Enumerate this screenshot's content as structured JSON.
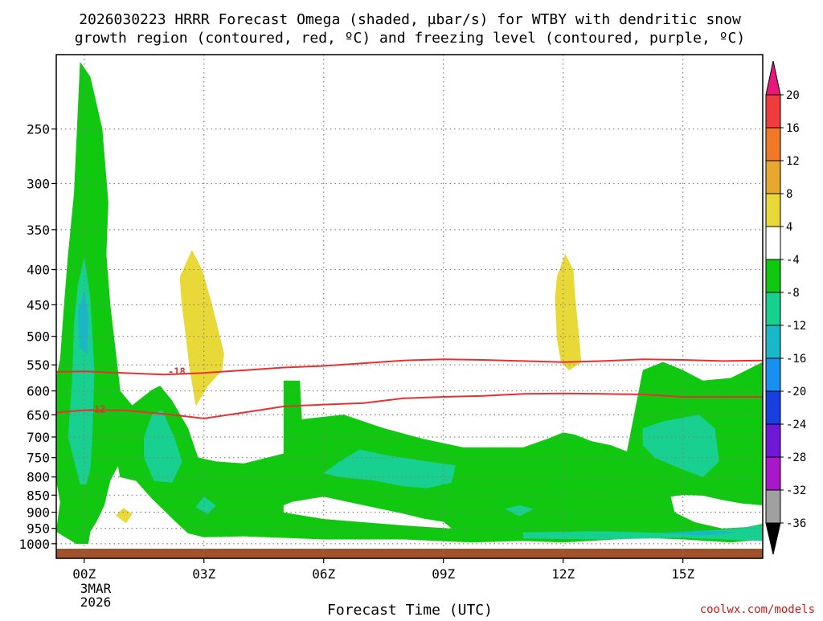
{
  "title_line1": "2026030223 HRRR Forecast Omega (shaded, µbar/s) for WTBY with dendritic snow",
  "title_line2": "growth region (contoured, red, ºC) and freezing level (contoured, purple, ºC)",
  "xlabel": "Forecast Time (UTC)",
  "credit": "coolwx.com/models",
  "date_label": [
    "3MAR",
    "2026"
  ],
  "chart_data": {
    "type": "heatmap",
    "title": "2026030223 HRRR Forecast Omega (shaded, µbar/s) for WTBY with dendritic snow growth region (contoured, red, ºC) and freezing level (contoured, purple, ºC)",
    "xlabel": "Forecast Time (UTC)",
    "ylabel": "",
    "x_unit": "forecast hour",
    "xlim": [
      -0.7,
      17.0
    ],
    "ylim_hpa": [
      1050,
      195
    ],
    "y_scale": "log-pressure",
    "grid": true,
    "x_ticks": [
      {
        "hour": 0,
        "label": "00Z"
      },
      {
        "hour": 3,
        "label": "03Z"
      },
      {
        "hour": 6,
        "label": "06Z"
      },
      {
        "hour": 9,
        "label": "09Z"
      },
      {
        "hour": 12,
        "label": "12Z"
      },
      {
        "hour": 15,
        "label": "15Z"
      }
    ],
    "y_ticks": [
      250,
      300,
      350,
      400,
      450,
      500,
      550,
      600,
      650,
      700,
      750,
      800,
      850,
      900,
      950,
      1000
    ],
    "colorbar": {
      "labels": [
        "20",
        "16",
        "12",
        "8",
        "4",
        "-4",
        "-8",
        "-12",
        "-16",
        "-20",
        "-24",
        "-28",
        "-32",
        "-36"
      ],
      "colors": [
        "#e8187a",
        "#f03c3c",
        "#f07828",
        "#e8a830",
        "#e8d838",
        "#ffffff",
        "#10c810",
        "#18d090",
        "#18b8c8",
        "#1890f0",
        "#1840e0",
        "#7018d8",
        "#a818c8",
        "#a0a0a0",
        "#000000"
      ]
    },
    "omega_regions": [
      {
        "level": "-4 to -8",
        "color": "#10c810",
        "points": [
          [
            -0.2,
            1000
          ],
          [
            -0.7,
            960
          ],
          [
            -0.6,
            870
          ],
          [
            -0.8,
            750
          ],
          [
            -0.9,
            650
          ],
          [
            -0.6,
            540
          ],
          [
            -0.5,
            450
          ],
          [
            -0.4,
            380
          ],
          [
            -0.25,
            310
          ],
          [
            -0.1,
            200
          ],
          [
            0.15,
            210
          ],
          [
            0.45,
            250
          ],
          [
            0.6,
            320
          ],
          [
            0.55,
            380
          ],
          [
            0.65,
            450
          ],
          [
            0.9,
            600
          ],
          [
            1.2,
            630
          ],
          [
            1.7,
            598
          ],
          [
            1.9,
            590
          ],
          [
            2.2,
            620
          ],
          [
            2.6,
            680
          ],
          [
            2.85,
            750
          ],
          [
            3.3,
            760
          ],
          [
            4.0,
            765
          ],
          [
            5.0,
            740
          ],
          [
            5.0,
            580
          ],
          [
            5.4,
            580
          ],
          [
            5.45,
            660
          ],
          [
            6.5,
            650
          ],
          [
            7.5,
            680
          ],
          [
            8.5,
            705
          ],
          [
            9.5,
            725
          ],
          [
            11.0,
            725
          ],
          [
            11.6,
            705
          ],
          [
            12.0,
            690
          ],
          [
            12.3,
            695
          ],
          [
            12.7,
            710
          ],
          [
            13.2,
            720
          ],
          [
            13.6,
            735
          ],
          [
            14.0,
            560
          ],
          [
            14.5,
            545
          ],
          [
            15.0,
            560
          ],
          [
            15.5,
            580
          ],
          [
            16.2,
            575
          ],
          [
            16.6,
            560
          ],
          [
            17.0,
            545
          ],
          [
            17.0,
            985
          ],
          [
            16.6,
            990
          ],
          [
            16.2,
            995
          ],
          [
            15.0,
            985
          ],
          [
            14.0,
            980
          ],
          [
            12.0,
            995
          ],
          [
            11.0,
            990
          ],
          [
            9.7,
            995
          ],
          [
            8.0,
            985
          ],
          [
            6.0,
            985
          ],
          [
            4.0,
            975
          ],
          [
            3.0,
            978
          ],
          [
            2.6,
            965
          ],
          [
            2.3,
            930
          ],
          [
            1.7,
            860
          ],
          [
            1.3,
            810
          ],
          [
            0.9,
            800
          ],
          [
            0.85,
            770
          ],
          [
            0.65,
            810
          ],
          [
            0.5,
            880
          ],
          [
            0.3,
            930
          ],
          [
            0.15,
            960
          ],
          [
            0.1,
            1000
          ]
        ]
      },
      {
        "level": "-8 to -12",
        "color": "#18d090",
        "points": [
          [
            -0.1,
            820
          ],
          [
            -0.4,
            700
          ],
          [
            -0.3,
            580
          ],
          [
            -0.25,
            480
          ],
          [
            -0.15,
            420
          ],
          [
            0.0,
            385
          ],
          [
            0.15,
            440
          ],
          [
            0.25,
            560
          ],
          [
            0.2,
            700
          ],
          [
            0.15,
            780
          ],
          [
            0.05,
            820
          ]
        ]
      },
      {
        "level": "-8 to -12",
        "color": "#18d090",
        "points": [
          [
            1.5,
            750
          ],
          [
            1.5,
            700
          ],
          [
            1.7,
            650
          ],
          [
            1.95,
            640
          ],
          [
            2.25,
            700
          ],
          [
            2.45,
            760
          ],
          [
            2.2,
            815
          ],
          [
            1.75,
            810
          ]
        ]
      },
      {
        "level": "-8 to -12",
        "color": "#18d090",
        "points": [
          [
            6.0,
            790
          ],
          [
            6.4,
            760
          ],
          [
            6.9,
            730
          ],
          [
            7.6,
            745
          ],
          [
            8.6,
            760
          ],
          [
            9.3,
            770
          ],
          [
            9.2,
            815
          ],
          [
            8.6,
            830
          ],
          [
            8.0,
            825
          ],
          [
            7.2,
            808
          ],
          [
            6.4,
            800
          ]
        ]
      },
      {
        "level": "-8 to -12",
        "color": "#18d090",
        "points": [
          [
            14.0,
            680
          ],
          [
            14.5,
            665
          ],
          [
            15.4,
            650
          ],
          [
            15.8,
            680
          ],
          [
            15.9,
            760
          ],
          [
            15.5,
            800
          ],
          [
            15.0,
            780
          ],
          [
            14.3,
            750
          ],
          [
            14.0,
            720
          ]
        ]
      },
      {
        "level": "-8 to -12",
        "color": "#18d090",
        "points": [
          [
            2.8,
            885
          ],
          [
            3.0,
            855
          ],
          [
            3.3,
            880
          ],
          [
            3.1,
            905
          ]
        ]
      },
      {
        "level": "-8 to -12",
        "color": "#18d090",
        "points": [
          [
            10.55,
            890
          ],
          [
            10.9,
            880
          ],
          [
            11.25,
            890
          ],
          [
            10.9,
            912
          ]
        ]
      },
      {
        "level": "-8 to -12",
        "color": "#18d090",
        "points": [
          [
            11.0,
            963
          ],
          [
            13.0,
            960
          ],
          [
            14.5,
            965
          ],
          [
            16.0,
            955
          ],
          [
            17.0,
            940
          ],
          [
            17.0,
            990
          ],
          [
            15.0,
            980
          ],
          [
            13.0,
            985
          ],
          [
            11.0,
            982
          ]
        ]
      },
      {
        "level": "-12 to -16",
        "color": "#18b8c8",
        "points": [
          [
            -0.1,
            520
          ],
          [
            -0.15,
            460
          ],
          [
            0.0,
            430
          ],
          [
            0.1,
            470
          ],
          [
            0.08,
            530
          ]
        ]
      },
      {
        "level": "-12 to -16",
        "color": "#18b8c8",
        "points": [
          [
            14.5,
            965
          ],
          [
            15.5,
            958
          ],
          [
            16.3,
            962
          ],
          [
            15.5,
            972
          ]
        ]
      },
      {
        "level": "4 to 8",
        "color": "#e8d838",
        "points": [
          [
            2.45,
            450
          ],
          [
            2.4,
            410
          ],
          [
            2.7,
            375
          ],
          [
            2.95,
            400
          ],
          [
            3.2,
            450
          ],
          [
            3.5,
            530
          ],
          [
            3.45,
            560
          ],
          [
            3.1,
            590
          ],
          [
            2.8,
            630
          ],
          [
            2.65,
            560
          ],
          [
            2.55,
            500
          ]
        ]
      },
      {
        "level": "4 to 8",
        "color": "#e8d838",
        "points": [
          [
            11.8,
            440
          ],
          [
            11.85,
            410
          ],
          [
            12.05,
            380
          ],
          [
            12.25,
            400
          ],
          [
            12.3,
            440
          ],
          [
            12.4,
            505
          ],
          [
            12.45,
            545
          ],
          [
            12.15,
            560
          ],
          [
            11.95,
            545
          ],
          [
            11.85,
            505
          ]
        ]
      },
      {
        "level": "4 to 8",
        "color": "#e8d838",
        "points": [
          [
            0.8,
            910
          ],
          [
            0.98,
            888
          ],
          [
            1.2,
            905
          ],
          [
            1.05,
            933
          ]
        ]
      },
      {
        "level": "-4 to 4",
        "color": "#ffffff",
        "points": [
          [
            5.0,
            880
          ],
          [
            5.2,
            870
          ],
          [
            6.0,
            855
          ],
          [
            7.0,
            880
          ],
          [
            8.0,
            905
          ],
          [
            8.5,
            920
          ],
          [
            9.0,
            930
          ],
          [
            9.2,
            950
          ],
          [
            8.0,
            940
          ],
          [
            7.0,
            930
          ],
          [
            6.0,
            920
          ],
          [
            5.0,
            900
          ]
        ]
      },
      {
        "level": "-4 to 4",
        "color": "#ffffff",
        "points": [
          [
            14.7,
            855
          ],
          [
            15.0,
            850
          ],
          [
            15.5,
            852
          ],
          [
            16.0,
            865
          ],
          [
            16.5,
            875
          ],
          [
            17.0,
            880
          ],
          [
            17.0,
            935
          ],
          [
            16.6,
            945
          ],
          [
            16.0,
            950
          ],
          [
            15.3,
            930
          ],
          [
            14.8,
            900
          ]
        ]
      }
    ],
    "contours": [
      {
        "label": "-18",
        "color": "#e83030",
        "label_at": [
          2.1,
          567
        ],
        "points": [
          [
            -0.7,
            563
          ],
          [
            0.0,
            562
          ],
          [
            1.0,
            565
          ],
          [
            2.0,
            568
          ],
          [
            3.0,
            565
          ],
          [
            4.0,
            560
          ],
          [
            5.0,
            555
          ],
          [
            6.0,
            552
          ],
          [
            7.0,
            547
          ],
          [
            8.0,
            542
          ],
          [
            9.0,
            540
          ],
          [
            10.0,
            541
          ],
          [
            11.0,
            543
          ],
          [
            12.0,
            545
          ],
          [
            13.0,
            543
          ],
          [
            14.0,
            540
          ],
          [
            15.0,
            541
          ],
          [
            16.0,
            543
          ],
          [
            17.0,
            542
          ]
        ]
      },
      {
        "label": "-12",
        "color": "#e83030",
        "label_at": [
          0.1,
          643
        ],
        "points": [
          [
            -0.7,
            645
          ],
          [
            0.0,
            640
          ],
          [
            1.0,
            640
          ],
          [
            2.0,
            648
          ],
          [
            3.0,
            658
          ],
          [
            4.0,
            645
          ],
          [
            5.0,
            632
          ],
          [
            6.0,
            628
          ],
          [
            7.0,
            625
          ],
          [
            8.0,
            615
          ],
          [
            9.0,
            612
          ],
          [
            10.0,
            610
          ],
          [
            11.0,
            606
          ],
          [
            12.0,
            605
          ],
          [
            13.0,
            606
          ],
          [
            14.0,
            607
          ],
          [
            15.0,
            612
          ],
          [
            16.0,
            612
          ],
          [
            17.0,
            612
          ]
        ]
      }
    ]
  }
}
